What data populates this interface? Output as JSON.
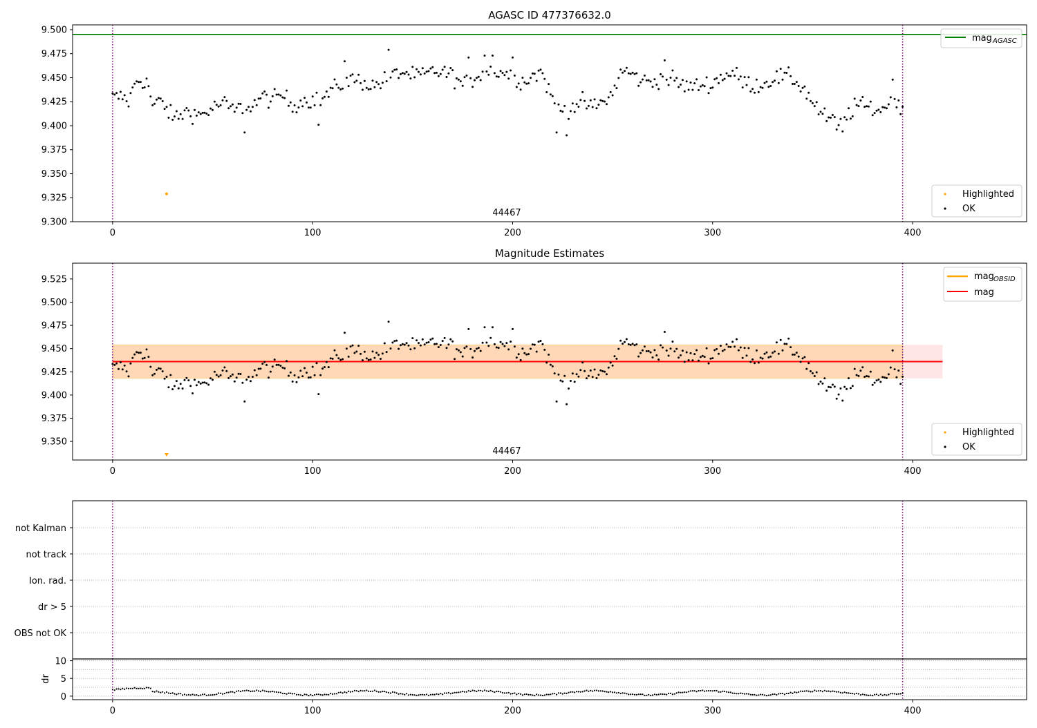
{
  "chart_data": [
    {
      "type": "scatter",
      "title": "AGASC ID 477376632.0",
      "xlim": [
        -20,
        457
      ],
      "ylim": [
        9.3,
        9.505
      ],
      "x_ticks": [
        0,
        100,
        200,
        300,
        400
      ],
      "y_ticks": [
        9.3,
        9.325,
        9.35,
        9.375,
        9.4,
        9.425,
        9.45,
        9.475,
        9.5
      ],
      "y_tick_labels": [
        "9.300",
        "9.325",
        "9.350",
        "9.375",
        "9.400",
        "9.425",
        "9.450",
        "9.475",
        "9.500"
      ],
      "grid": false,
      "obsid_label": "44467",
      "obsid_label_x": 197,
      "obsid_boundaries": [
        0,
        395
      ],
      "hlines": [
        {
          "name": "mag_AGASC",
          "y": 9.495,
          "color": "#008000"
        }
      ],
      "highlighted_points": [
        {
          "x": 27,
          "y": 9.329
        }
      ],
      "legends": [
        {
          "position": "top-right",
          "entries": [
            {
              "label": "mag",
              "sub": "AGASC",
              "kind": "line",
              "color": "#008000"
            }
          ]
        },
        {
          "position": "bottom-right",
          "entries": [
            {
              "label": "Highlighted",
              "kind": "dot",
              "color": "#ffa500"
            },
            {
              "label": "OK",
              "kind": "dot",
              "color": "#000000"
            }
          ]
        }
      ]
    },
    {
      "type": "scatter",
      "title": "Magnitude Estimates",
      "xlim": [
        -20,
        457
      ],
      "ylim": [
        9.33,
        9.542
      ],
      "x_ticks": [
        0,
        100,
        200,
        300,
        400
      ],
      "y_ticks": [
        9.35,
        9.375,
        9.4,
        9.425,
        9.45,
        9.475,
        9.5,
        9.525
      ],
      "y_tick_labels": [
        "9.350",
        "9.375",
        "9.400",
        "9.425",
        "9.450",
        "9.475",
        "9.500",
        "9.525"
      ],
      "grid": false,
      "obsid_label": "44467",
      "obsid_label_x": 197,
      "obsid_boundaries": [
        0,
        395
      ],
      "mag_line": {
        "y": 9.436,
        "color": "#ff0000"
      },
      "obsid_band": {
        "x": [
          0,
          395
        ],
        "y": [
          9.418,
          9.454
        ],
        "color": "#ffa500"
      },
      "mag_band": {
        "x": [
          0,
          415
        ],
        "y": [
          9.418,
          9.454
        ],
        "color": "#ff0000"
      },
      "highlighted_points": [
        {
          "x": 27,
          "y": 9.332
        }
      ],
      "legends": [
        {
          "position": "top-right",
          "entries": [
            {
              "label": "mag",
              "sub": "OBSID",
              "kind": "line",
              "color": "#ffa500"
            },
            {
              "label": "mag",
              "sub": "",
              "kind": "line",
              "color": "#ff0000"
            }
          ]
        },
        {
          "position": "bottom-right",
          "entries": [
            {
              "label": "Highlighted",
              "kind": "dot",
              "color": "#ffa500"
            },
            {
              "label": "OK",
              "kind": "dot",
              "color": "#000000"
            }
          ]
        }
      ]
    },
    {
      "type": "scatter",
      "title": "",
      "categories": [
        "not Kalman",
        "not track",
        "Ion. rad.",
        "dr > 5",
        "OBS not OK"
      ],
      "xlim": [
        -20,
        457
      ],
      "obsid_boundaries": [
        0,
        395
      ],
      "grid": true,
      "series": []
    },
    {
      "type": "scatter",
      "ylabel": "dr",
      "xlim": [
        -20,
        457
      ],
      "ylim": [
        -1,
        10.5
      ],
      "y_ticks": [
        0,
        5,
        10
      ],
      "x_ticks": [
        0,
        100,
        200,
        300,
        400
      ],
      "grid": true,
      "obsid_boundaries": [
        0,
        395
      ]
    }
  ],
  "mag_anchors": [
    [
      0,
      9.429
    ],
    [
      5,
      9.43
    ],
    [
      8,
      9.425
    ],
    [
      12,
      9.448
    ],
    [
      16,
      9.446
    ],
    [
      18,
      9.442
    ],
    [
      20,
      9.42
    ],
    [
      24,
      9.426
    ],
    [
      27,
      9.418
    ],
    [
      30,
      9.408
    ],
    [
      34,
      9.411
    ],
    [
      38,
      9.416
    ],
    [
      42,
      9.411
    ],
    [
      46,
      9.413
    ],
    [
      50,
      9.418
    ],
    [
      55,
      9.424
    ],
    [
      60,
      9.416
    ],
    [
      65,
      9.419
    ],
    [
      70,
      9.421
    ],
    [
      75,
      9.43
    ],
    [
      80,
      9.427
    ],
    [
      85,
      9.432
    ],
    [
      90,
      9.421
    ],
    [
      95,
      9.426
    ],
    [
      100,
      9.427
    ],
    [
      104,
      9.426
    ],
    [
      108,
      9.434
    ],
    [
      112,
      9.44
    ],
    [
      116,
      9.446
    ],
    [
      120,
      9.448
    ],
    [
      125,
      9.446
    ],
    [
      130,
      9.441
    ],
    [
      135,
      9.446
    ],
    [
      140,
      9.452
    ],
    [
      145,
      9.456
    ],
    [
      150,
      9.452
    ],
    [
      155,
      9.452
    ],
    [
      160,
      9.456
    ],
    [
      165,
      9.456
    ],
    [
      170,
      9.452
    ],
    [
      175,
      9.442
    ],
    [
      180,
      9.448
    ],
    [
      185,
      9.457
    ],
    [
      190,
      9.457
    ],
    [
      195,
      9.456
    ],
    [
      200,
      9.452
    ],
    [
      205,
      9.446
    ],
    [
      210,
      9.452
    ],
    [
      215,
      9.456
    ],
    [
      218,
      9.436
    ],
    [
      222,
      9.42
    ],
    [
      226,
      9.416
    ],
    [
      230,
      9.421
    ],
    [
      235,
      9.424
    ],
    [
      240,
      9.419
    ],
    [
      245,
      9.424
    ],
    [
      250,
      9.433
    ],
    [
      254,
      9.456
    ],
    [
      258,
      9.456
    ],
    [
      262,
      9.45
    ],
    [
      266,
      9.446
    ],
    [
      270,
      9.446
    ],
    [
      275,
      9.45
    ],
    [
      280,
      9.448
    ],
    [
      285,
      9.442
    ],
    [
      290,
      9.44
    ],
    [
      295,
      9.443
    ],
    [
      300,
      9.444
    ],
    [
      305,
      9.452
    ],
    [
      310,
      9.455
    ],
    [
      315,
      9.446
    ],
    [
      320,
      9.442
    ],
    [
      325,
      9.443
    ],
    [
      330,
      9.449
    ],
    [
      335,
      9.451
    ],
    [
      340,
      9.449
    ],
    [
      345,
      9.44
    ],
    [
      350,
      9.425
    ],
    [
      355,
      9.41
    ],
    [
      360,
      9.405
    ],
    [
      364,
      9.402
    ],
    [
      368,
      9.412
    ],
    [
      372,
      9.422
    ],
    [
      376,
      9.42
    ],
    [
      380,
      9.418
    ],
    [
      384,
      9.416
    ],
    [
      388,
      9.424
    ],
    [
      392,
      9.428
    ],
    [
      395,
      9.425
    ]
  ],
  "mag_outliers": [
    [
      66,
      9.393
    ],
    [
      103,
      9.401
    ],
    [
      116,
      9.467
    ],
    [
      138,
      9.479
    ],
    [
      178,
      9.471
    ],
    [
      186,
      9.473
    ],
    [
      190,
      9.473
    ],
    [
      200,
      9.471
    ],
    [
      222,
      9.393
    ],
    [
      227,
      9.39
    ],
    [
      276,
      9.468
    ],
    [
      362,
      9.396
    ],
    [
      365,
      9.394
    ],
    [
      390,
      9.448
    ],
    [
      394,
      9.412
    ]
  ]
}
